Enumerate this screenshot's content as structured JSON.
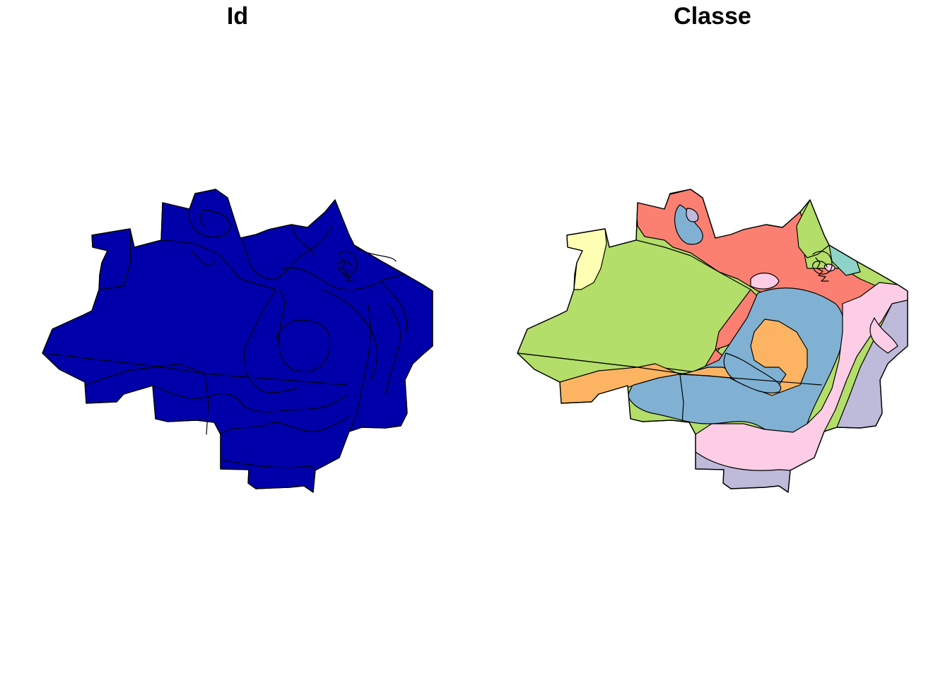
{
  "panels": [
    {
      "title": "Id"
    },
    {
      "title": "Classe"
    }
  ],
  "colors": {
    "id_fill": "#0000AA",
    "classe_palette": [
      "#FFFFB3",
      "#B3DE69",
      "#FB8072",
      "#80B1D3",
      "#FDB462",
      "#FCCDE5",
      "#BEBADA",
      "#8DD3C7"
    ]
  }
}
